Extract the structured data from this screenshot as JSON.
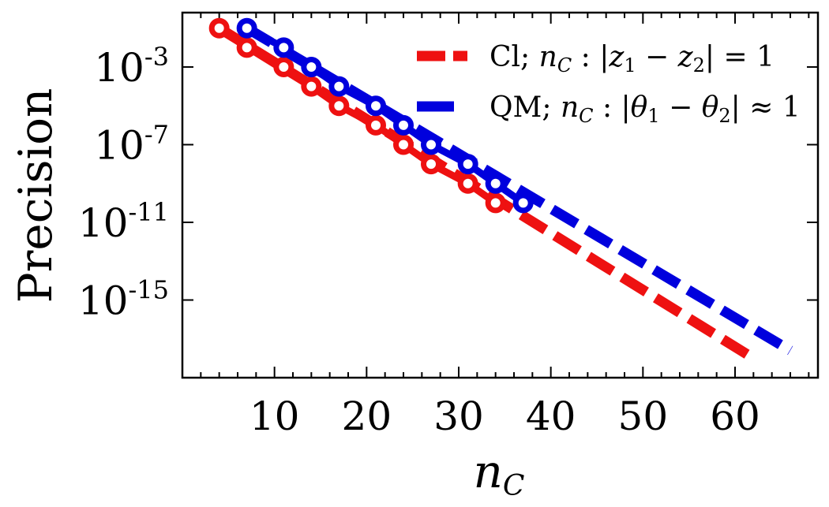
{
  "chart_data": {
    "type": "line",
    "title": "",
    "xlabel": "n_C",
    "xlabel_main": "n",
    "xlabel_sub": "C",
    "ylabel": "Precision",
    "yscale": "log",
    "xlim": [
      0,
      69
    ],
    "ylim_log10": [
      -19.0,
      -0.2
    ],
    "xticks": [
      10,
      20,
      30,
      40,
      50,
      60
    ],
    "xtick_labels": [
      "10",
      "20",
      "30",
      "40",
      "50",
      "60"
    ],
    "yticks_log10": [
      -3,
      -7,
      -11,
      -15
    ],
    "ytick_labels": [
      {
        "base": "10",
        "exp": "-3"
      },
      {
        "base": "10",
        "exp": "-7"
      },
      {
        "base": "10",
        "exp": "-11"
      },
      {
        "base": "10",
        "exp": "-15"
      }
    ],
    "legend_position": "top-right",
    "series": [
      {
        "name": "Cl; n_C : |z_1 - z_2| = 1",
        "legend": {
          "prefix": "Cl; ",
          "sub1": "C",
          "cond_a": "z",
          "sub_a": "1",
          "cond_b": "z",
          "sub_b": "2",
          "rhs": "= 1",
          "op": "−"
        },
        "color": "#ee1111",
        "markers": {
          "x": [
            4,
            7,
            11,
            14,
            17,
            21,
            24,
            27,
            31,
            34
          ],
          "log10_y": [
            -1.0,
            -2.0,
            -3.0,
            -4.0,
            -5.0,
            -6.0,
            -7.0,
            -8.0,
            -9.0,
            -10.0
          ]
        },
        "fit": {
          "x": [
            4,
            62
          ],
          "log10_y": [
            -1.0,
            -18.0
          ]
        }
      },
      {
        "name": "QM; n_C : |θ_1 - θ_2| ≈ 1",
        "legend": {
          "prefix": "QM; ",
          "sub1": "C",
          "cond_a": "θ",
          "sub_a": "1",
          "cond_b": "θ",
          "sub_b": "2",
          "rhs": "≈ 1",
          "op": "−"
        },
        "color": "#0000dd",
        "markers": {
          "x": [
            7,
            11,
            14,
            17,
            21,
            24,
            27,
            31,
            34,
            37
          ],
          "log10_y": [
            -1.0,
            -2.0,
            -3.0,
            -4.0,
            -5.0,
            -6.0,
            -7.0,
            -8.0,
            -9.0,
            -10.0
          ]
        },
        "fit": {
          "x": [
            7,
            66
          ],
          "log10_y": [
            -1.0,
            -17.6
          ]
        }
      }
    ]
  }
}
